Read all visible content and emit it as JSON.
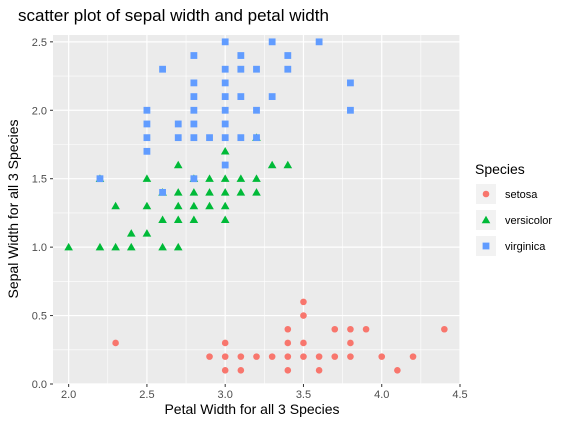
{
  "chart_data": {
    "type": "scatter",
    "title": "scatter plot of sepal width and petal width",
    "xlabel": "Petal Width for all 3 Species",
    "ylabel": "Sepal Width for all 3 Species",
    "xlim": [
      1.9,
      4.5
    ],
    "ylim": [
      0.0,
      2.55
    ],
    "x_ticks": [
      2.0,
      2.5,
      3.0,
      3.5,
      4.0,
      4.5
    ],
    "x_tick_labels": [
      "2.0",
      "2.5",
      "3.0",
      "3.5",
      "4.0",
      "4.5"
    ],
    "y_ticks": [
      0.0,
      0.5,
      1.0,
      1.5,
      2.0,
      2.5
    ],
    "y_tick_labels": [
      "0.0",
      "0.5",
      "1.0",
      "1.5",
      "2.0",
      "2.5"
    ],
    "grid": true,
    "panel_background": "#ebebeb",
    "legend": {
      "title": "Species",
      "position": "right"
    },
    "series": [
      {
        "name": "setosa",
        "shape": "circle",
        "color": "#f8766d",
        "points": [
          [
            2.3,
            0.3
          ],
          [
            2.9,
            0.2
          ],
          [
            3.0,
            0.1
          ],
          [
            3.0,
            0.2
          ],
          [
            3.0,
            0.3
          ],
          [
            3.1,
            0.1
          ],
          [
            3.1,
            0.2
          ],
          [
            3.2,
            0.2
          ],
          [
            3.3,
            0.2
          ],
          [
            3.4,
            0.1
          ],
          [
            3.4,
            0.2
          ],
          [
            3.4,
            0.3
          ],
          [
            3.4,
            0.4
          ],
          [
            3.5,
            0.2
          ],
          [
            3.5,
            0.3
          ],
          [
            3.5,
            0.5
          ],
          [
            3.5,
            0.6
          ],
          [
            3.6,
            0.1
          ],
          [
            3.6,
            0.2
          ],
          [
            3.7,
            0.2
          ],
          [
            3.7,
            0.4
          ],
          [
            3.8,
            0.2
          ],
          [
            3.8,
            0.3
          ],
          [
            3.8,
            0.4
          ],
          [
            3.9,
            0.4
          ],
          [
            4.0,
            0.2
          ],
          [
            4.1,
            0.1
          ],
          [
            4.2,
            0.2
          ],
          [
            4.4,
            0.4
          ]
        ]
      },
      {
        "name": "versicolor",
        "shape": "triangle",
        "color": "#00ba38",
        "points": [
          [
            2.0,
            1.0
          ],
          [
            2.2,
            1.0
          ],
          [
            2.2,
            1.5
          ],
          [
            2.3,
            1.0
          ],
          [
            2.3,
            1.3
          ],
          [
            2.4,
            1.0
          ],
          [
            2.4,
            1.1
          ],
          [
            2.5,
            1.1
          ],
          [
            2.5,
            1.5
          ],
          [
            2.6,
            1.0
          ],
          [
            2.6,
            1.2
          ],
          [
            2.7,
            1.0
          ],
          [
            2.7,
            1.2
          ],
          [
            2.7,
            1.3
          ],
          [
            2.7,
            1.4
          ],
          [
            2.7,
            1.6
          ],
          [
            2.8,
            1.2
          ],
          [
            2.8,
            1.3
          ],
          [
            2.8,
            1.4
          ],
          [
            2.8,
            1.5
          ],
          [
            2.9,
            1.3
          ],
          [
            2.9,
            1.4
          ],
          [
            2.9,
            1.5
          ],
          [
            3.0,
            1.2
          ],
          [
            3.0,
            1.4
          ],
          [
            3.0,
            1.5
          ],
          [
            3.0,
            1.7
          ],
          [
            3.1,
            1.4
          ],
          [
            3.1,
            1.5
          ],
          [
            3.2,
            1.4
          ],
          [
            3.2,
            1.5
          ],
          [
            3.2,
            1.8
          ],
          [
            3.3,
            1.6
          ],
          [
            3.4,
            1.6
          ],
          [
            2.5,
            1.3
          ],
          [
            2.6,
            1.4
          ],
          [
            3.0,
            1.3
          ]
        ]
      },
      {
        "name": "virginica",
        "shape": "square",
        "color": "#619cff",
        "points": [
          [
            2.2,
            1.5
          ],
          [
            2.5,
            1.7
          ],
          [
            2.5,
            1.8
          ],
          [
            2.5,
            1.9
          ],
          [
            2.5,
            2.0
          ],
          [
            2.6,
            1.4
          ],
          [
            2.6,
            2.3
          ],
          [
            2.7,
            1.8
          ],
          [
            2.7,
            1.9
          ],
          [
            2.8,
            1.5
          ],
          [
            2.8,
            1.8
          ],
          [
            2.8,
            1.9
          ],
          [
            2.8,
            2.0
          ],
          [
            2.8,
            2.1
          ],
          [
            2.8,
            2.2
          ],
          [
            2.8,
            2.4
          ],
          [
            2.9,
            1.8
          ],
          [
            3.0,
            1.6
          ],
          [
            3.0,
            1.8
          ],
          [
            3.0,
            2.0
          ],
          [
            3.0,
            2.1
          ],
          [
            3.0,
            2.2
          ],
          [
            3.0,
            2.3
          ],
          [
            3.1,
            1.8
          ],
          [
            3.1,
            2.1
          ],
          [
            3.1,
            2.3
          ],
          [
            3.1,
            2.4
          ],
          [
            3.2,
            1.8
          ],
          [
            3.2,
            2.0
          ],
          [
            3.2,
            2.3
          ],
          [
            3.3,
            2.1
          ],
          [
            3.3,
            2.5
          ],
          [
            3.4,
            2.3
          ],
          [
            3.4,
            2.4
          ],
          [
            3.6,
            2.5
          ],
          [
            3.8,
            2.0
          ],
          [
            3.8,
            2.2
          ],
          [
            3.0,
            1.9
          ],
          [
            3.0,
            2.5
          ]
        ]
      }
    ]
  }
}
